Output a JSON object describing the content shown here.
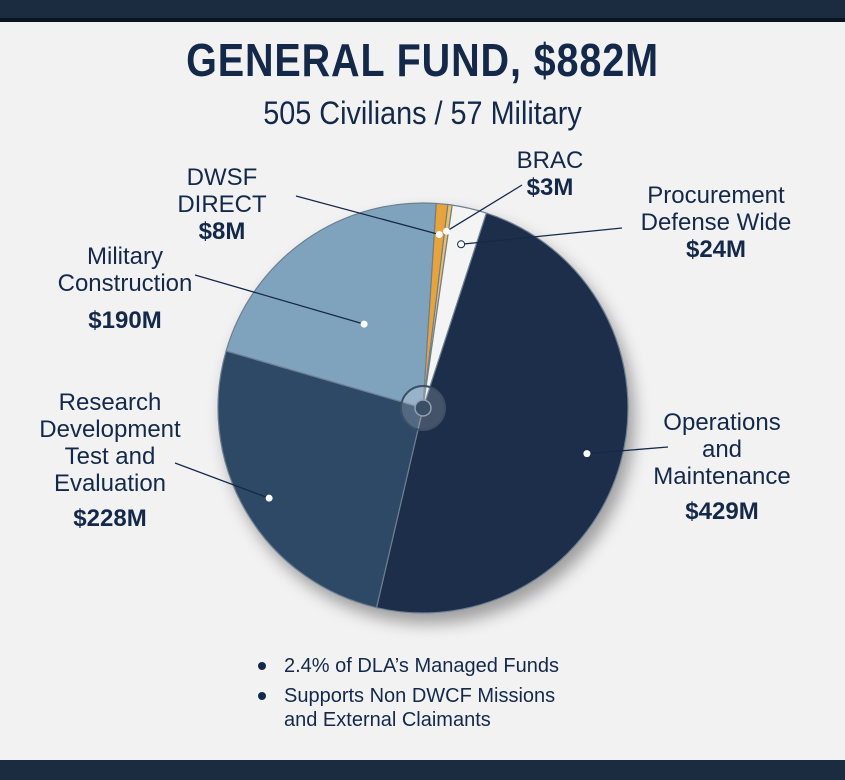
{
  "header": {
    "title": "GENERAL FUND, $882M",
    "subtitle": "505 Civilians / 57 Military"
  },
  "chart_data": {
    "type": "pie",
    "title": "GENERAL FUND, $882M",
    "subtitle": "505 Civilians / 57 Military",
    "unit": "$M",
    "slices": [
      {
        "label": "Operations and Maintenance",
        "value_label": "$429M",
        "value": 429,
        "color": "#1b2d48"
      },
      {
        "label": "Research Development Test and Evaluation",
        "value_label": "$228M",
        "value": 228,
        "color": "#2f4a66"
      },
      {
        "label": "Military Construction",
        "value_label": "$190M",
        "value": 190,
        "color": "#7fa3bd"
      },
      {
        "label": "DWSF DIRECT",
        "value_label": "$8M",
        "value": 8,
        "color": "#e8a43a"
      },
      {
        "label": "BRAC",
        "value_label": "$3M",
        "value": 3,
        "color": "#f0c060"
      },
      {
        "label": "Procurement Defense Wide",
        "value_label": "$24M",
        "value": 24,
        "color": "#f4f4f4"
      }
    ]
  },
  "labels": {
    "om_1": "Operations",
    "om_2": "and",
    "om_3": "Maintenance",
    "om_val": "$429M",
    "rdte_1": "Research",
    "rdte_2": "Development",
    "rdte_3": "Test and",
    "rdte_4": "Evaluation",
    "rdte_val": "$228M",
    "milcon_1": "Military",
    "milcon_2": "Construction",
    "milcon_val": "$190M",
    "dwsf_1": "DWSF DIRECT",
    "dwsf_val": "$8M",
    "brac_1": "BRAC",
    "brac_val": "$3M",
    "proc_1": "Procurement",
    "proc_2": "Defense Wide",
    "proc_val": "$24M"
  },
  "notes": [
    "2.4% of DLA’s Managed Funds",
    "Supports Non DWCF Missions",
    "and External Claimants"
  ]
}
